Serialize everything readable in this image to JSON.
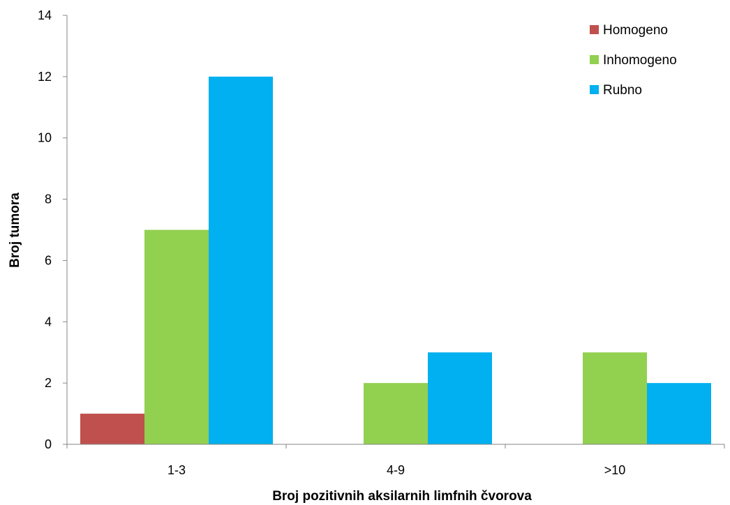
{
  "chart_data": {
    "type": "bar",
    "categories": [
      "1-3",
      "4-9",
      ">10"
    ],
    "series": [
      {
        "name": "Homogeno",
        "values": [
          1,
          0,
          0
        ],
        "color": "#C0504D"
      },
      {
        "name": "Inhomogeno",
        "values": [
          7,
          2,
          3
        ],
        "color": "#92D050"
      },
      {
        "name": "Rubno",
        "values": [
          12,
          3,
          2
        ],
        "color": "#00B0F0"
      }
    ],
    "title": "",
    "xlabel": "Broj pozitivnih aksilarnih limfnih čvorova",
    "ylabel": "Broj tumora",
    "ylim": [
      0,
      14
    ],
    "yticks": [
      "0",
      "2",
      "4",
      "6",
      "8",
      "10",
      "12",
      "14"
    ],
    "grid": false,
    "legend_position": "top-right"
  }
}
